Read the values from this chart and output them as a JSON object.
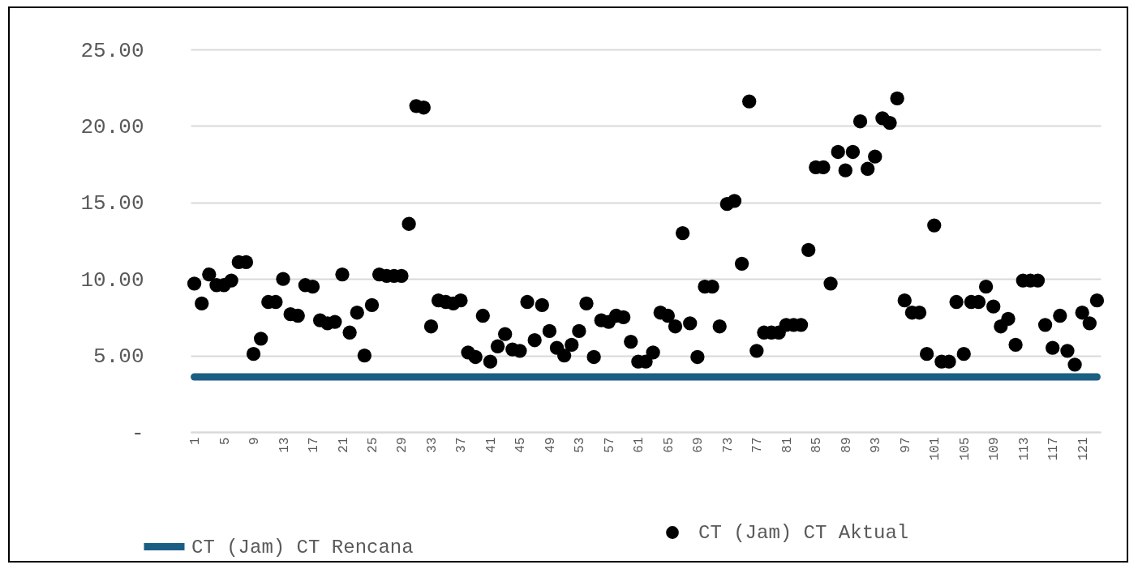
{
  "chart_data": {
    "type": "scatter",
    "categories": [
      "1",
      null,
      null,
      null,
      "5",
      null,
      null,
      null,
      "9",
      null,
      null,
      null,
      "13",
      null,
      null,
      null,
      "17",
      null,
      null,
      null,
      "21",
      null,
      null,
      null,
      "25",
      null,
      null,
      null,
      "29",
      null,
      null,
      null,
      "33",
      null,
      null,
      null,
      "37",
      null,
      null,
      null,
      "41",
      null,
      null,
      null,
      "45",
      null,
      null,
      null,
      "49",
      null,
      null,
      null,
      "53",
      null,
      null,
      null,
      "57",
      null,
      null,
      null,
      "61",
      null,
      null,
      null,
      "65",
      null,
      null,
      null,
      "69",
      null,
      null,
      null,
      "73",
      null,
      null,
      null,
      "77",
      null,
      null,
      null,
      "81",
      null,
      null,
      null,
      "85",
      null,
      null,
      null,
      "89",
      null,
      null,
      null,
      "93",
      null,
      null,
      null,
      "97",
      null,
      null,
      null,
      "101",
      null,
      null,
      null,
      "105",
      null,
      null,
      null,
      "109",
      null,
      null,
      null,
      "113",
      null,
      null,
      null,
      "117",
      null,
      null,
      null,
      "121",
      null,
      null
    ],
    "series": [
      {
        "name": "CT (Jam) CT Rencana",
        "type": "line",
        "color": "#1b5e84",
        "values": [
          3.6,
          3.6,
          3.6,
          3.6,
          3.6,
          3.6,
          3.6,
          3.6,
          3.6,
          3.6,
          3.6,
          3.6,
          3.6,
          3.6,
          3.6,
          3.6,
          3.6,
          3.6,
          3.6,
          3.6,
          3.6,
          3.6,
          3.6,
          3.6,
          3.6,
          3.6,
          3.6,
          3.6,
          3.6,
          3.6,
          3.6,
          3.6,
          3.6,
          3.6,
          3.6,
          3.6,
          3.6,
          3.6,
          3.6,
          3.6,
          3.6,
          3.6,
          3.6,
          3.6,
          3.6,
          3.6,
          3.6,
          3.6,
          3.6,
          3.6,
          3.6,
          3.6,
          3.6,
          3.6,
          3.6,
          3.6,
          3.6,
          3.6,
          3.6,
          3.6,
          3.6,
          3.6,
          3.6,
          3.6,
          3.6,
          3.6,
          3.6,
          3.6,
          3.6,
          3.6,
          3.6,
          3.6,
          3.6,
          3.6,
          3.6,
          3.6,
          3.6,
          3.6,
          3.6,
          3.6,
          3.6,
          3.6,
          3.6,
          3.6,
          3.6,
          3.6,
          3.6,
          3.6,
          3.6,
          3.6,
          3.6,
          3.6,
          3.6,
          3.6,
          3.6,
          3.6,
          3.6,
          3.6,
          3.6,
          3.6,
          3.6,
          3.6,
          3.6,
          3.6,
          3.6,
          3.6,
          3.6,
          3.6,
          3.6,
          3.6,
          3.6,
          3.6,
          3.6,
          3.6,
          3.6,
          3.6,
          3.6,
          3.6,
          3.6,
          3.6,
          3.6,
          3.6,
          3.6
        ]
      },
      {
        "name": "CT (Jam) CT Aktual",
        "type": "scatter",
        "marker": "circle",
        "color": "#000000",
        "values": [
          9.7,
          8.4,
          10.3,
          9.6,
          9.6,
          9.9,
          11.1,
          11.1,
          5.1,
          6.1,
          8.5,
          8.5,
          10.0,
          7.7,
          7.6,
          9.6,
          9.5,
          7.3,
          7.1,
          7.2,
          10.3,
          6.5,
          7.8,
          5.0,
          8.3,
          10.3,
          10.2,
          10.2,
          10.2,
          13.6,
          21.3,
          21.2,
          6.9,
          8.6,
          8.5,
          8.4,
          8.6,
          5.2,
          4.9,
          7.6,
          4.6,
          5.6,
          6.4,
          5.4,
          5.3,
          8.5,
          6.0,
          8.3,
          6.6,
          5.5,
          5.0,
          5.7,
          6.6,
          8.4,
          4.9,
          7.3,
          7.2,
          7.6,
          7.5,
          5.9,
          4.6,
          4.6,
          5.2,
          7.8,
          7.6,
          6.9,
          13.0,
          7.1,
          4.9,
          9.5,
          9.5,
          6.9,
          14.9,
          15.1,
          11.0,
          21.6,
          5.3,
          6.5,
          6.5,
          6.5,
          7.0,
          7.0,
          7.0,
          11.9,
          17.3,
          17.3,
          9.7,
          18.3,
          17.1,
          18.3,
          20.3,
          17.2,
          18.0,
          20.5,
          20.2,
          21.8,
          8.6,
          7.8,
          7.8,
          5.1,
          13.5,
          4.6,
          4.6,
          8.5,
          5.1,
          8.5,
          8.5,
          9.5,
          8.2,
          6.9,
          7.4,
          5.7,
          9.9,
          9.9,
          9.9,
          7.0,
          5.5,
          7.6,
          5.3,
          4.4,
          7.8,
          7.1,
          8.6
        ]
      }
    ],
    "ylim": [
      0,
      25
    ],
    "yticks": [
      {
        "value": 0,
        "label": "-"
      },
      {
        "value": 5,
        "label": "5.00"
      },
      {
        "value": 10,
        "label": "10.00"
      },
      {
        "value": 15,
        "label": "15.00"
      },
      {
        "value": 20,
        "label": "20.00"
      },
      {
        "value": 25,
        "label": "25.00"
      }
    ],
    "grid": "y",
    "legend": "bottom"
  }
}
